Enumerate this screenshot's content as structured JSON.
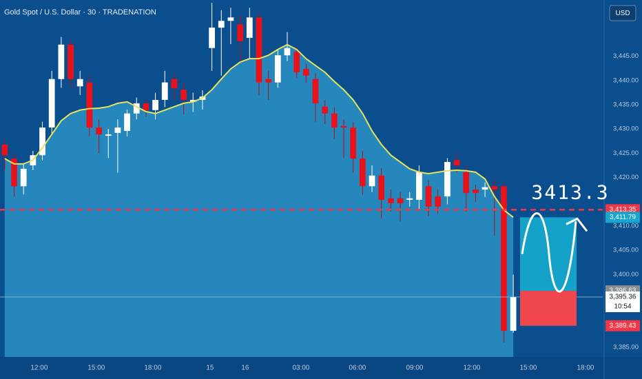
{
  "chart_data": {
    "type": "candlestick",
    "title": "Gold Spot / U.S. Dollar · 30 · TRADENATION",
    "currency": "USD",
    "annotation": "3413.3",
    "countdown": "10:54",
    "up_color": "#ffffff",
    "down_color": "#e8121d",
    "ema_color": "#e6e35c",
    "area_color": "#2a92c4",
    "xlim": [
      -0.5,
      63.5
    ],
    "ylim": [
      3383,
      3456.6
    ],
    "xticks": [
      {
        "value": 3.66,
        "label": "12:00"
      },
      {
        "value": 9.73,
        "label": "15:00"
      },
      {
        "value": 15.73,
        "label": "18:00"
      },
      {
        "value": 21.8,
        "label": "15"
      },
      {
        "value": 25.53,
        "label": "16"
      },
      {
        "value": 31.46,
        "label": "03:00"
      },
      {
        "value": 37.45,
        "label": "06:00"
      },
      {
        "value": 43.53,
        "label": "09:00"
      },
      {
        "value": 49.6,
        "label": "12:00"
      },
      {
        "value": 55.6,
        "label": "15:00"
      },
      {
        "value": 61.67,
        "label": "18:00"
      }
    ],
    "yticks": [
      {
        "value": 3445,
        "label": "3,445.00"
      },
      {
        "value": 3440,
        "label": "3,440.00"
      },
      {
        "value": 3435,
        "label": "3,435.00"
      },
      {
        "value": 3430,
        "label": "3,430.00"
      },
      {
        "value": 3425,
        "label": "3,425.00"
      },
      {
        "value": 3420,
        "label": "3,420.00"
      },
      {
        "value": 3410,
        "label": "3,410.00"
      },
      {
        "value": 3405,
        "label": "3,405.00"
      },
      {
        "value": 3400,
        "label": "3,400.00"
      },
      {
        "value": 3385,
        "label": "3,385.00"
      }
    ],
    "open": [
      3426.8,
      3423.9,
      3418.2,
      3422.5,
      3424.6,
      3430.3,
      3440.3,
      3447.4,
      3438.8,
      3439.6,
      3430.3,
      3428.6,
      3429.2,
      3429.6,
      3433.2,
      3435.3,
      3433.9,
      3436.0,
      3440.3,
      3438.1,
      3435.6,
      3436.0,
      3446.7,
      3450.9,
      3452.3,
      3451.6,
      3448.8,
      3453.0,
      3440.3,
      3439.6,
      3445.2,
      3445.9,
      3442.4,
      3440.3,
      3434.6,
      3433.2,
      3430.6,
      3430.3,
      3423.9,
      3418.2,
      3420.4,
      3415.7,
      3415.7,
      3415.4,
      3415.4,
      3418.2,
      3416.1,
      3416.1,
      3423.6,
      3421.1,
      3417.5,
      3417.5,
      3418.2,
      3418.2,
      3388.4
    ],
    "high": [
      3428.0,
      3425.0,
      3423.0,
      3425.5,
      3431.5,
      3442.0,
      3449.0,
      3448.5,
      3442.0,
      3441.0,
      3432.0,
      3430.0,
      3432.0,
      3434.0,
      3436.5,
      3436.0,
      3437.5,
      3442.0,
      3441.5,
      3439.5,
      3437.5,
      3438.0,
      3456.0,
      3454.5,
      3455.0,
      3453.5,
      3455.0,
      3454.0,
      3442.0,
      3446.5,
      3450.0,
      3447.0,
      3443.5,
      3441.5,
      3436.0,
      3434.5,
      3432.0,
      3431.5,
      3425.5,
      3422.5,
      3422.0,
      3417.5,
      3417.0,
      3417.0,
      3422.5,
      3419.5,
      3417.5,
      3424.0,
      3425.0,
      3422.5,
      3418.5,
      3419.0,
      3419.5,
      3419.0,
      3400.0
    ],
    "low": [
      3421.5,
      3416.0,
      3416.5,
      3421.5,
      3423.5,
      3429.0,
      3438.5,
      3438.5,
      3437.0,
      3428.5,
      3425.0,
      3424.0,
      3421.0,
      3428.5,
      3432.0,
      3432.5,
      3432.0,
      3434.5,
      3436.0,
      3433.0,
      3433.5,
      3434.0,
      3442.0,
      3441.0,
      3447.5,
      3444.0,
      3444.5,
      3437.0,
      3436.0,
      3438.5,
      3444.0,
      3440.5,
      3439.5,
      3431.5,
      3431.0,
      3428.0,
      3424.0,
      3421.0,
      3416.5,
      3417.0,
      3411.5,
      3413.0,
      3411.0,
      3414.0,
      3413.5,
      3412.0,
      3412.5,
      3414.5,
      3421.0,
      3413.0,
      3415.0,
      3416.0,
      3408.0,
      3386.0,
      3388.0
    ],
    "close": [
      3424.6,
      3418.2,
      3421.8,
      3424.6,
      3430.3,
      3440.3,
      3447.4,
      3440.3,
      3440.3,
      3430.3,
      3428.9,
      3428.9,
      3430.3,
      3433.2,
      3435.3,
      3433.9,
      3436.0,
      3439.6,
      3438.4,
      3436.0,
      3436.0,
      3436.7,
      3450.9,
      3452.3,
      3453.0,
      3448.1,
      3453.0,
      3439.6,
      3439.6,
      3445.2,
      3446.7,
      3441.7,
      3441.0,
      3435.3,
      3433.2,
      3430.3,
      3430.3,
      3423.9,
      3418.2,
      3420.4,
      3415.4,
      3414.7,
      3414.7,
      3415.7,
      3421.1,
      3414.0,
      3414.0,
      3423.2,
      3422.5,
      3416.8,
      3416.8,
      3418.0,
      3417.5,
      3388.4,
      3395.36
    ],
    "ema": [
      3423.9,
      3422.8,
      3422.8,
      3423.6,
      3426.1,
      3428.9,
      3431.7,
      3433.2,
      3433.9,
      3434.2,
      3434.3,
      3434.6,
      3435.3,
      3435.6,
      3434.6,
      3433.6,
      3433.2,
      3433.9,
      3434.6,
      3435.3,
      3435.6,
      3436.4,
      3438.1,
      3440.3,
      3442.4,
      3443.8,
      3444.5,
      3444.5,
      3445.2,
      3446.4,
      3447.4,
      3446.4,
      3444.5,
      3443.1,
      3441.7,
      3439.8,
      3438.1,
      3436.0,
      3433.2,
      3429.6,
      3426.8,
      3424.6,
      3423.2,
      3421.8,
      3421.1,
      3420.8,
      3421.1,
      3421.4,
      3421.5,
      3421.4,
      3421.1,
      3419.7,
      3416.1,
      3413.3,
      3411.8
    ],
    "price_labels": [
      {
        "value": 3413.35,
        "label": "3,413.35",
        "color": "#f23645"
      },
      {
        "value": 3411.79,
        "label": "3,411.79",
        "color": "#18a6cc"
      },
      {
        "value": 3396.63,
        "label": "3,396.63",
        "color": "#8a8d93"
      },
      {
        "value": 3395.36,
        "label": "3,395.36",
        "color": "#ffffff"
      },
      {
        "value": 3389.43,
        "label": "3,389.43",
        "color": "#f23645"
      }
    ]
  }
}
